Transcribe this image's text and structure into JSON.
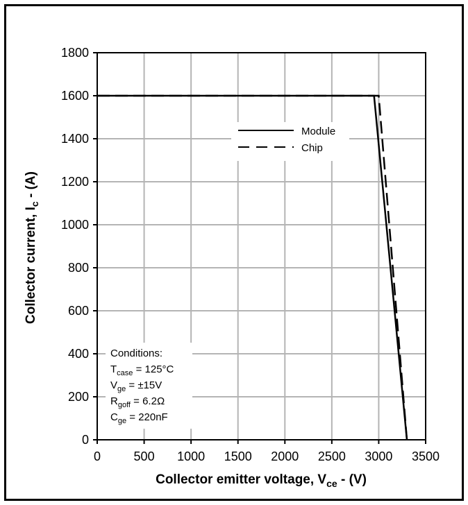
{
  "chart_data": {
    "type": "line",
    "xlabel": "Collector emitter voltage, V",
    "xlabel_sub": "ce",
    "xlabel_unit": " - (V)",
    "ylabel": "Collector current, I",
    "ylabel_sub": "c",
    "ylabel_unit": " - (A)",
    "xlim": [
      0,
      3500
    ],
    "ylim": [
      0,
      1800
    ],
    "xticks": [
      0,
      500,
      1000,
      1500,
      2000,
      2500,
      3000,
      3500
    ],
    "yticks": [
      0,
      200,
      400,
      600,
      800,
      1000,
      1200,
      1400,
      1600,
      1800
    ],
    "grid": true,
    "legend_position": "upper-center",
    "series": [
      {
        "name": "Module",
        "style": "solid",
        "points": [
          [
            0,
            1600
          ],
          [
            2950,
            1600
          ],
          [
            3300,
            0
          ]
        ]
      },
      {
        "name": "Chip",
        "style": "dashed",
        "points": [
          [
            0,
            1600
          ],
          [
            3000,
            1600
          ],
          [
            3300,
            0
          ]
        ]
      }
    ],
    "conditions": [
      {
        "main": "Conditions:",
        "sub": "",
        "rest": ""
      },
      {
        "main": "T",
        "sub": "case",
        "rest": " = 125°C"
      },
      {
        "main": "V",
        "sub": "ge",
        "rest": " = ±15V"
      },
      {
        "main": "R",
        "sub": "goff",
        "rest": " = 6.2Ω"
      },
      {
        "main": "C",
        "sub": "ge",
        "rest": " = 220nF"
      }
    ]
  },
  "colors": {
    "grid": "#b4b4b4",
    "line": "#000000"
  }
}
